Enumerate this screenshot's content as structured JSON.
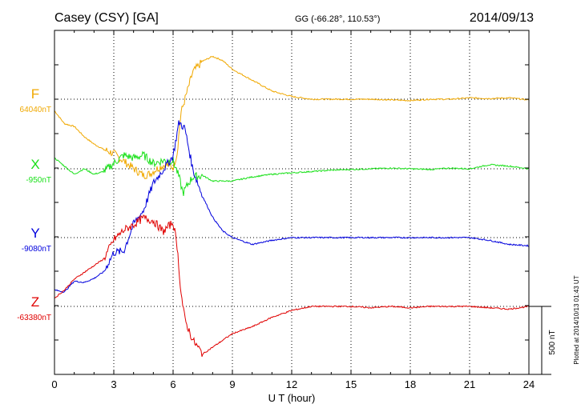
{
  "header": {
    "station": "Casey (CSY)  [GA]",
    "coords": "GG (-66.28°, 110.53°)",
    "date": "2014/09/13"
  },
  "footer": {
    "plotted_note": "Plotted at 2014/10/13 01:43 UT",
    "scale_label": "500 nT"
  },
  "colors": {
    "F": "#f0a800",
    "X": "#18e018",
    "Y": "#0000dd",
    "Z": "#e00000",
    "axis": "#000000"
  },
  "chart_data": {
    "type": "line",
    "title": "Casey (CSY)  [GA]",
    "xlabel": "U T (hour)",
    "ylabel": "",
    "xlim": [
      0,
      24
    ],
    "xticks": [
      0,
      3,
      6,
      9,
      12,
      15,
      18,
      21,
      24
    ],
    "scale_bar_nT": 500,
    "grid": true,
    "series": [
      {
        "name": "F",
        "baseline_label": "64040nT",
        "color": "#f0a800",
        "x": [
          0,
          0.5,
          1,
          1.5,
          2,
          2.5,
          3,
          3.5,
          4,
          4.5,
          4.8,
          5.2,
          5.6,
          6,
          6.2,
          6.4,
          6.6,
          7,
          7.5,
          8,
          8.5,
          9,
          9.5,
          10,
          11,
          12,
          13,
          14,
          15,
          16,
          17,
          18,
          19,
          20,
          21,
          22,
          23,
          24
        ],
        "y": [
          -85,
          -180,
          -200,
          -275,
          -330,
          -370,
          -400,
          -455,
          -510,
          -560,
          -550,
          -510,
          -480,
          -500,
          -400,
          -100,
          0,
          200,
          280,
          315,
          285,
          220,
          180,
          140,
          60,
          20,
          0,
          0,
          0,
          0,
          -5,
          -10,
          0,
          0,
          10,
          5,
          10,
          -5
        ]
      },
      {
        "name": "X",
        "baseline_label": "-950nT",
        "color": "#18e018",
        "x": [
          0,
          0.5,
          1,
          1.5,
          2,
          2.5,
          3,
          3.5,
          4,
          4.5,
          5,
          5.5,
          6,
          6.3,
          6.5,
          6.8,
          7,
          7.5,
          8,
          9,
          10,
          11,
          12,
          13,
          14,
          15,
          16,
          17,
          18,
          19,
          20,
          21,
          22,
          23,
          24
        ],
        "y": [
          80,
          20,
          -40,
          0,
          -40,
          -20,
          40,
          100,
          80,
          100,
          40,
          60,
          60,
          -60,
          -180,
          -100,
          -60,
          -50,
          -90,
          -90,
          -60,
          -40,
          -30,
          -20,
          -10,
          -5,
          0,
          5,
          0,
          -5,
          5,
          0,
          30,
          20,
          0
        ]
      },
      {
        "name": "Y",
        "baseline_label": "-9080nT",
        "color": "#0000dd",
        "x": [
          0,
          0.5,
          1,
          1.5,
          2,
          2.5,
          3,
          3.5,
          4,
          4.5,
          5,
          5.5,
          6,
          6.3,
          6.6,
          7,
          7.5,
          8,
          8.5,
          9,
          10,
          11,
          12,
          13,
          14,
          15,
          16,
          17,
          18,
          19,
          20,
          21,
          22,
          23,
          24
        ],
        "y": [
          -385,
          -400,
          -320,
          -330,
          -300,
          -250,
          -110,
          -100,
          100,
          200,
          400,
          500,
          600,
          850,
          800,
          500,
          300,
          150,
          50,
          0,
          -50,
          -20,
          0,
          0,
          0,
          0,
          0,
          0,
          0,
          0,
          0,
          0,
          -20,
          -50,
          -60
        ]
      },
      {
        "name": "Z",
        "baseline_label": "-63380nT",
        "color": "#e00000",
        "x": [
          0,
          0.5,
          1,
          1.5,
          2,
          2.5,
          3,
          3.5,
          4,
          4.5,
          5,
          5.5,
          6,
          6.2,
          6.4,
          6.6,
          7,
          7.5,
          8,
          8.5,
          9,
          10,
          11,
          12,
          13,
          14,
          15,
          16,
          17,
          18,
          19,
          20,
          21,
          22,
          23,
          24
        ],
        "y": [
          60,
          120,
          200,
          250,
          300,
          350,
          490,
          560,
          600,
          650,
          630,
          550,
          620,
          450,
          100,
          -100,
          -250,
          -350,
          -300,
          -250,
          -200,
          -150,
          -80,
          -30,
          0,
          0,
          0,
          -10,
          0,
          -10,
          0,
          0,
          0,
          -10,
          -20,
          0
        ]
      }
    ]
  }
}
